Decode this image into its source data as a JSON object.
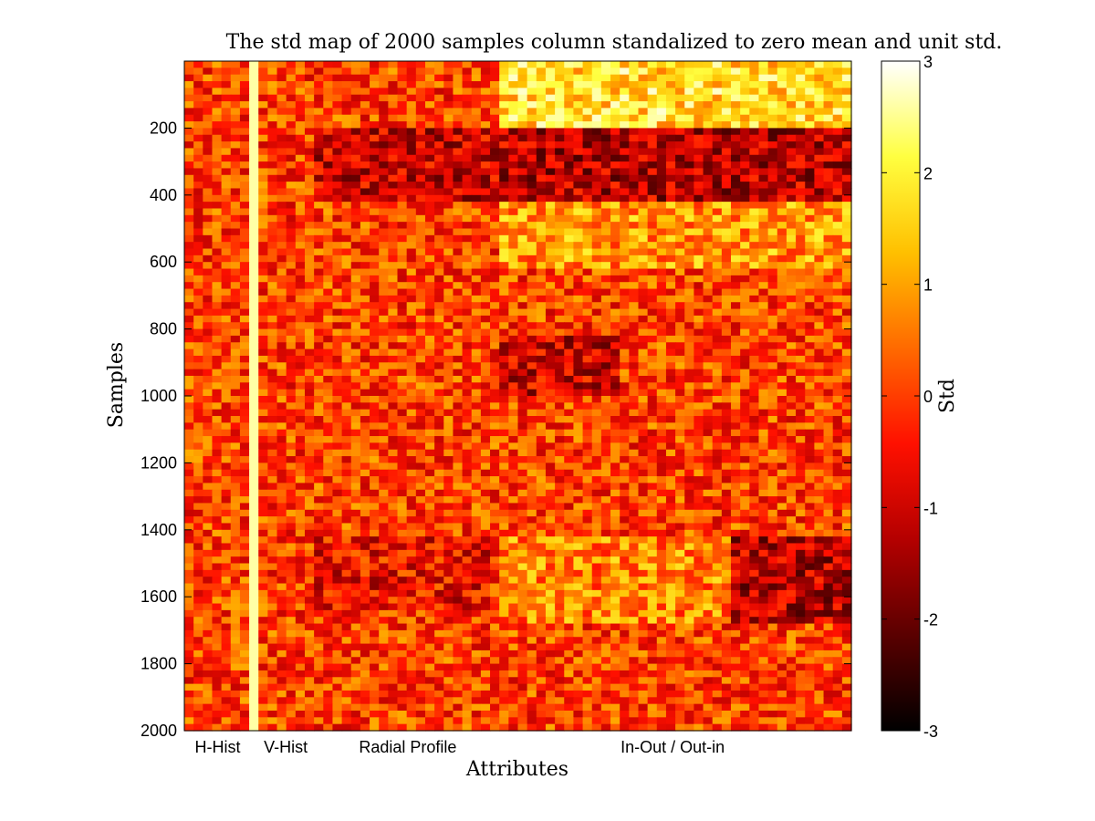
{
  "chart_data": {
    "type": "heatmap",
    "title": "The std map of 2000 samples column standalized to zero mean and unit std.",
    "xlabel": "Attributes",
    "ylabel": "Samples",
    "colorbar_label": "Std",
    "colormap": "hot",
    "clim": [
      -3,
      3
    ],
    "ylim": [
      0,
      2000
    ],
    "y_reversed": true,
    "y_ticks": [
      200,
      400,
      600,
      800,
      1000,
      1200,
      1400,
      1600,
      1800,
      2000
    ],
    "x_group_labels": [
      "H-Hist",
      "V-Hist",
      "Radial Profile",
      "In-Out / Out-in"
    ],
    "colorbar_ticks": [
      3,
      2,
      1,
      0,
      -1,
      -2,
      -3
    ],
    "colors": {
      "cmap_stops": [
        "#000000",
        "#5a0000",
        "#b40000",
        "#ff1000",
        "#ff6a00",
        "#ffc000",
        "#ffff40",
        "#ffffff"
      ],
      "axis": "#000000",
      "background": "#ffffff"
    }
  }
}
